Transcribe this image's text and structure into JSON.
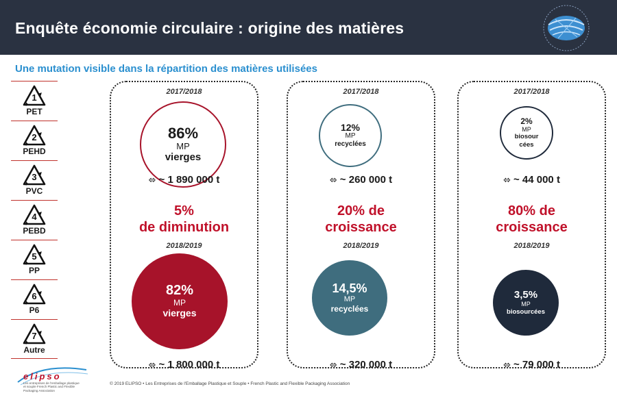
{
  "header": {
    "title": "Enquête économie circulaire : origine des matières"
  },
  "subtitle": "Une mutation visible dans la répartition des matières utilisées",
  "resin_codes": [
    {
      "number": "1",
      "label": "PET"
    },
    {
      "number": "2",
      "label": "PEHD"
    },
    {
      "number": "3",
      "label": "PVC"
    },
    {
      "number": "4",
      "label": "PEBD"
    },
    {
      "number": "5",
      "label": "PP"
    },
    {
      "number": "6",
      "label": "P6"
    },
    {
      "number": "7",
      "label": "Autre"
    }
  ],
  "panels": [
    {
      "period_before": "2017/2018",
      "before": {
        "pct": "86%",
        "mp": "MP",
        "kind": "vierges",
        "tonnage": "~ 1 890 000 t"
      },
      "change_line1": "5%",
      "change_line2": "de diminution",
      "period_after": "2018/2019",
      "after": {
        "pct": "82%",
        "mp": "MP",
        "kind": "vierges",
        "tonnage": "~ 1 800 000 t"
      }
    },
    {
      "period_before": "2017/2018",
      "before": {
        "pct": "12%",
        "mp": "MP",
        "kind": "recyclées",
        "tonnage": "~ 260 000 t"
      },
      "change_line1": "20% de",
      "change_line2": "croissance",
      "period_after": "2018/2019",
      "after": {
        "pct": "14,5%",
        "mp": "MP",
        "kind": "recyclées",
        "tonnage": "~ 320 000 t"
      }
    },
    {
      "period_before": "2017/2018",
      "before": {
        "pct": "2%",
        "mp": "MP",
        "kind_line1": "biosour",
        "kind_line2": "cées",
        "tonnage": "~ 44 000 t"
      },
      "change_line1": "80% de",
      "change_line2": "croissance",
      "period_after": "2018/2019",
      "after": {
        "pct": "3,5%",
        "mp": "MP",
        "kind": "biosourcées",
        "tonnage": "~ 79 000 t"
      }
    }
  ],
  "arrow_glyph": "⬄",
  "footer": {
    "copyright": "© 2019 ELIPSO • Les Entreprises de l'Emballage Plastique et Souple • French Plastic and Flexible Packaging Association",
    "logo_word": "elipso",
    "logo_tagline": "Les entreprises de l'emballage plastique et souple French Plastic and Flexible Packaging Association"
  },
  "colors": {
    "header_bg": "#2a3241",
    "subtitle": "#2a8fcf",
    "accent_red": "#c0112a",
    "virgin_fill": "#a7132a",
    "recycled_fill": "#3f6d7e",
    "biosourced_fill": "#1f2a3b"
  },
  "icons": [
    "globe-logo-icon",
    "recycle-triangle-icon",
    "double-arrow-icon"
  ]
}
